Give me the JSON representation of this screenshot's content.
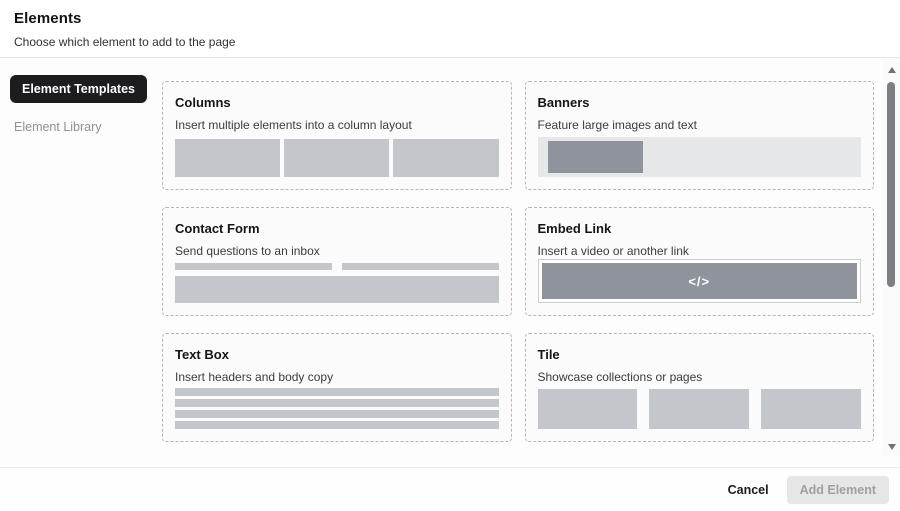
{
  "header": {
    "title": "Elements",
    "subtitle": "Choose which element to add to the page"
  },
  "sidebar": {
    "items": [
      {
        "label": "Element Templates",
        "active": true
      },
      {
        "label": "Element Library",
        "active": false
      }
    ]
  },
  "cards": [
    {
      "title": "Columns",
      "description": "Insert multiple elements into a column layout",
      "preview": "columns"
    },
    {
      "title": "Banners",
      "description": "Feature large images and text",
      "preview": "banner"
    },
    {
      "title": "Contact Form",
      "description": "Send questions to an inbox",
      "preview": "contact-form"
    },
    {
      "title": "Embed Link",
      "description": "Insert a video or another link",
      "preview": "embed",
      "embed_icon": "</>"
    },
    {
      "title": "Text Box",
      "description": "Insert headers and body copy",
      "preview": "text-box"
    },
    {
      "title": "Tile",
      "description": "Showcase collections or pages",
      "preview": "tiles"
    }
  ],
  "footer": {
    "cancel_label": "Cancel",
    "add_label": "Add Element"
  },
  "colors": {
    "active_tab_bg": "#1d1d1f",
    "preview_gray": "#c3c7cb",
    "preview_dark_gray": "#8f949c",
    "preview_light_gray": "#e6e7e9"
  }
}
